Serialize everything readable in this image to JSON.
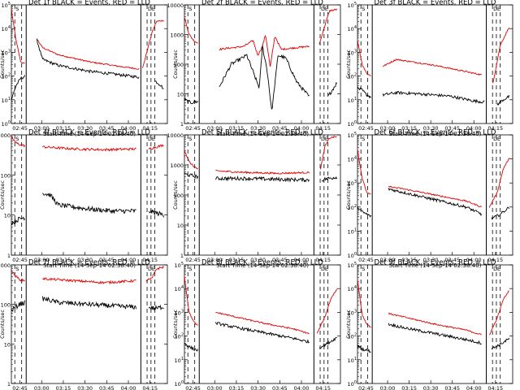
{
  "colors": {
    "events": "#000000",
    "lld": "#e00000",
    "axes": "#000000",
    "background": "#ffffff"
  },
  "common": {
    "xlabel": "Start Time (14-Sep-14 02:38:40)",
    "ylabel": "Counts/sec",
    "x_ticks": [
      "02:45",
      "03:00",
      "03:15",
      "03:30",
      "03:45",
      "04:00",
      "04:15"
    ],
    "marker_labels": [
      "S",
      "D",
      "E"
    ]
  },
  "chart_data": [
    {
      "title": "Det 1f BLACK = Events, RED = LLD",
      "type": "line",
      "ylim": [
        1,
        100000
      ],
      "yticks": [
        "10^0",
        "10^1",
        "10^2",
        "10^3",
        "10^4",
        "10^5"
      ],
      "events": [
        [
          0,
          1.0
        ],
        [
          0.03,
          1.6
        ],
        [
          0.06,
          1.9
        ],
        [
          0.09,
          2.0
        ],
        [
          0.095,
          null
        ],
        [
          0.16,
          3.6
        ],
        [
          0.2,
          2.7
        ],
        [
          0.3,
          2.45
        ],
        [
          0.5,
          2.2
        ],
        [
          0.7,
          2.05
        ],
        [
          0.82,
          1.95
        ],
        [
          0.83,
          null
        ],
        [
          0.92,
          1.8
        ],
        [
          0.96,
          1.6
        ],
        [
          0.98,
          1.4
        ]
      ],
      "lld": [
        [
          0,
          4.8
        ],
        [
          0.03,
          3.5
        ],
        [
          0.06,
          2.6
        ],
        [
          0.09,
          2.5
        ],
        [
          0.095,
          null
        ],
        [
          0.16,
          3.6
        ],
        [
          0.2,
          3.2
        ],
        [
          0.3,
          2.9
        ],
        [
          0.5,
          2.6
        ],
        [
          0.7,
          2.4
        ],
        [
          0.82,
          2.3
        ],
        [
          0.83,
          null
        ],
        [
          0.84,
          2.3
        ],
        [
          0.9,
          3.8
        ],
        [
          0.93,
          4.3
        ],
        [
          0.98,
          4.35
        ]
      ]
    },
    {
      "title": "Det 2f BLACK = Events, RED = LLD",
      "type": "line",
      "ylim": [
        1,
        10000
      ],
      "yticks": [
        "1",
        "10",
        "100",
        "1000",
        "10000"
      ],
      "events": [
        [
          0,
          0.8
        ],
        [
          0.04,
          0.7
        ],
        [
          0.09,
          0.75
        ],
        [
          0.095,
          null
        ],
        [
          0.22,
          1.2
        ],
        [
          0.3,
          2.0
        ],
        [
          0.4,
          2.3
        ],
        [
          0.45,
          1.6
        ],
        [
          0.48,
          1.2
        ],
        [
          0.5,
          2.6
        ],
        [
          0.53,
          1.8
        ],
        [
          0.56,
          0.4
        ],
        [
          0.6,
          2.3
        ],
        [
          0.65,
          2.2
        ],
        [
          0.72,
          1.4
        ],
        [
          0.8,
          0.9
        ],
        [
          0.83,
          null
        ],
        [
          0.92,
          0.9
        ],
        [
          0.98,
          1.4
        ]
      ],
      "lld": [
        [
          0,
          3.6
        ],
        [
          0.03,
          3.0
        ],
        [
          0.06,
          2.8
        ],
        [
          0.09,
          2.7
        ],
        [
          0.095,
          null
        ],
        [
          0.22,
          2.5
        ],
        [
          0.38,
          2.6
        ],
        [
          0.44,
          2.8
        ],
        [
          0.47,
          2.3
        ],
        [
          0.5,
          2.6
        ],
        [
          0.52,
          3.0
        ],
        [
          0.55,
          1.9
        ],
        [
          0.58,
          2.95
        ],
        [
          0.62,
          2.5
        ],
        [
          0.7,
          2.55
        ],
        [
          0.8,
          2.6
        ],
        [
          0.83,
          null
        ],
        [
          0.86,
          2.6
        ],
        [
          0.9,
          3.3
        ],
        [
          0.93,
          3.8
        ],
        [
          0.98,
          3.85
        ]
      ]
    },
    {
      "title": "Det 3f BLACK = Events, RED = LLD",
      "type": "line",
      "ylim": [
        1,
        100000
      ],
      "yticks": [
        "10^0",
        "10^1",
        "10^2",
        "10^3",
        "10^4",
        "10^5"
      ],
      "events": [
        [
          0,
          1.5
        ],
        [
          0.03,
          1.4
        ],
        [
          0.06,
          1.2
        ],
        [
          0.09,
          1.1
        ],
        [
          0.095,
          null
        ],
        [
          0.16,
          1.2
        ],
        [
          0.25,
          1.3
        ],
        [
          0.4,
          1.25
        ],
        [
          0.6,
          1.15
        ],
        [
          0.75,
          0.95
        ],
        [
          0.82,
          0.9
        ],
        [
          0.83,
          null
        ],
        [
          0.9,
          0.8
        ],
        [
          0.94,
          1.0
        ],
        [
          0.98,
          1.15
        ]
      ],
      "lld": [
        [
          0,
          3.5
        ],
        [
          0.03,
          2.5
        ],
        [
          0.06,
          2.1
        ],
        [
          0.09,
          2.0
        ],
        [
          0.095,
          null
        ],
        [
          0.16,
          2.4
        ],
        [
          0.25,
          2.7
        ],
        [
          0.35,
          2.6
        ],
        [
          0.5,
          2.45
        ],
        [
          0.65,
          2.25
        ],
        [
          0.8,
          2.05
        ],
        [
          0.83,
          null
        ],
        [
          0.87,
          1.6
        ],
        [
          0.92,
          3.3
        ],
        [
          0.98,
          4.1
        ]
      ]
    },
    {
      "title": "Det 4f BLACK = Events, RED = LLD",
      "type": "line",
      "ylim": [
        1,
        1000
      ],
      "yticks": [
        "1",
        "10",
        "100",
        "1000"
      ],
      "events": [
        [
          0,
          0.8
        ],
        [
          0.05,
          0.9
        ],
        [
          0.09,
          0.95
        ],
        [
          0.095,
          null
        ],
        [
          0.2,
          1.55
        ],
        [
          0.25,
          1.5
        ],
        [
          0.3,
          1.25
        ],
        [
          0.4,
          1.2
        ],
        [
          0.5,
          1.15
        ],
        [
          0.65,
          1.1
        ],
        [
          0.8,
          1.1
        ],
        [
          0.83,
          null
        ],
        [
          0.88,
          1.1
        ],
        [
          0.93,
          1.05
        ],
        [
          0.98,
          1.0
        ]
      ],
      "lld": [
        [
          0,
          2.95
        ],
        [
          0.03,
          2.8
        ],
        [
          0.06,
          2.75
        ],
        [
          0.09,
          2.73
        ],
        [
          0.095,
          null
        ],
        [
          0.2,
          2.7
        ],
        [
          0.4,
          2.65
        ],
        [
          0.6,
          2.63
        ],
        [
          0.8,
          2.65
        ],
        [
          0.83,
          null
        ],
        [
          0.88,
          2.65
        ],
        [
          0.93,
          2.7
        ],
        [
          0.98,
          2.75
        ]
      ]
    },
    {
      "title": "Det 5f BLACK = Events, RED = LLD",
      "type": "line",
      "ylim": [
        1,
        10000
      ],
      "yticks": [
        "1",
        "10",
        "100",
        "1000",
        "10000"
      ],
      "events": [
        [
          0,
          2.7
        ],
        [
          0.04,
          2.65
        ],
        [
          0.09,
          2.6
        ],
        [
          0.095,
          null
        ],
        [
          0.2,
          2.55
        ],
        [
          0.4,
          2.55
        ],
        [
          0.6,
          2.52
        ],
        [
          0.8,
          2.5
        ],
        [
          0.83,
          null
        ],
        [
          0.88,
          2.5
        ],
        [
          0.92,
          2.55
        ],
        [
          0.98,
          2.6
        ]
      ],
      "lld": [
        [
          0,
          3.5
        ],
        [
          0.03,
          3.1
        ],
        [
          0.06,
          2.95
        ],
        [
          0.09,
          2.85
        ],
        [
          0.095,
          null
        ],
        [
          0.2,
          2.8
        ],
        [
          0.4,
          2.75
        ],
        [
          0.6,
          2.72
        ],
        [
          0.8,
          2.75
        ],
        [
          0.83,
          null
        ],
        [
          0.87,
          2.8
        ],
        [
          0.9,
          3.6
        ],
        [
          0.93,
          3.9
        ],
        [
          0.98,
          3.95
        ]
      ]
    },
    {
      "title": "Det 6f BLACK = Events, RED = LLD",
      "type": "line",
      "ylim": [
        1,
        100000
      ],
      "yticks": [
        "10^0",
        "10^1",
        "10^2",
        "10^3",
        "10^4",
        "10^5"
      ],
      "events": [
        [
          0,
          2.0
        ],
        [
          0.03,
          1.8
        ],
        [
          0.06,
          1.7
        ],
        [
          0.09,
          1.6
        ],
        [
          0.095,
          null
        ],
        [
          0.2,
          2.75
        ],
        [
          0.3,
          2.6
        ],
        [
          0.5,
          2.3
        ],
        [
          0.7,
          2.0
        ],
        [
          0.8,
          1.7
        ],
        [
          0.83,
          null
        ],
        [
          0.86,
          1.5
        ],
        [
          0.92,
          1.7
        ],
        [
          0.98,
          2.0
        ]
      ],
      "lld": [
        [
          0,
          4.4
        ],
        [
          0.03,
          3.2
        ],
        [
          0.06,
          2.6
        ],
        [
          0.09,
          2.5
        ],
        [
          0.095,
          null
        ],
        [
          0.2,
          2.85
        ],
        [
          0.3,
          2.75
        ],
        [
          0.5,
          2.5
        ],
        [
          0.7,
          2.25
        ],
        [
          0.8,
          2.0
        ],
        [
          0.83,
          null
        ],
        [
          0.85,
          2.0
        ],
        [
          0.9,
          2.6
        ],
        [
          0.94,
          3.6
        ],
        [
          0.98,
          4.05
        ]
      ]
    },
    {
      "title": "Det 7f BLACK = Events, RED = LLD",
      "type": "line",
      "ylim": [
        1,
        1000
      ],
      "yticks": [
        "1",
        "10",
        "100",
        "1000"
      ],
      "events": [
        [
          0,
          1.85
        ],
        [
          0.05,
          2.0
        ],
        [
          0.09,
          2.05
        ],
        [
          0.095,
          null
        ],
        [
          0.2,
          2.15
        ],
        [
          0.3,
          2.05
        ],
        [
          0.5,
          2.0
        ],
        [
          0.7,
          1.95
        ],
        [
          0.8,
          1.93
        ],
        [
          0.83,
          null
        ],
        [
          0.88,
          1.92
        ],
        [
          0.93,
          1.9
        ],
        [
          0.98,
          1.95
        ]
      ],
      "lld": [
        [
          0,
          2.85
        ],
        [
          0.03,
          2.7
        ],
        [
          0.06,
          2.62
        ],
        [
          0.09,
          2.6
        ],
        [
          0.095,
          null
        ],
        [
          0.2,
          2.65
        ],
        [
          0.4,
          2.6
        ],
        [
          0.6,
          2.55
        ],
        [
          0.8,
          2.6
        ],
        [
          0.83,
          null
        ],
        [
          0.86,
          2.6
        ],
        [
          0.9,
          2.65
        ],
        [
          0.93,
          2.9
        ],
        [
          0.98,
          2.95
        ]
      ]
    },
    {
      "title": "Det 8f BLACK = Events, RED = LLD",
      "type": "line",
      "ylim": [
        1,
        100000
      ],
      "yticks": [
        "10^0",
        "10^1",
        "10^2",
        "10^3",
        "10^4",
        "10^5"
      ],
      "events": [
        [
          0,
          1.7
        ],
        [
          0.03,
          1.55
        ],
        [
          0.06,
          1.45
        ],
        [
          0.09,
          1.4
        ],
        [
          0.095,
          null
        ],
        [
          0.2,
          2.55
        ],
        [
          0.3,
          2.4
        ],
        [
          0.5,
          2.15
        ],
        [
          0.7,
          1.9
        ],
        [
          0.8,
          1.75
        ],
        [
          0.83,
          null
        ],
        [
          0.86,
          1.5
        ],
        [
          0.92,
          1.7
        ],
        [
          0.98,
          1.95
        ]
      ],
      "lld": [
        [
          0,
          4.5
        ],
        [
          0.03,
          3.0
        ],
        [
          0.06,
          2.6
        ],
        [
          0.09,
          2.4
        ],
        [
          0.095,
          null
        ],
        [
          0.2,
          3.0
        ],
        [
          0.3,
          2.85
        ],
        [
          0.5,
          2.55
        ],
        [
          0.7,
          2.3
        ],
        [
          0.8,
          2.1
        ],
        [
          0.83,
          null
        ],
        [
          0.85,
          2.1
        ],
        [
          0.9,
          2.8
        ],
        [
          0.94,
          3.6
        ],
        [
          0.98,
          4.0
        ]
      ]
    },
    {
      "title": "Det 9f BLACK = Events, RED = LLD",
      "type": "line",
      "ylim": [
        1,
        100000
      ],
      "yticks": [
        "10^0",
        "10^1",
        "10^2",
        "10^3",
        "10^4",
        "10^5"
      ],
      "events": [
        [
          0,
          1.6
        ],
        [
          0.03,
          1.45
        ],
        [
          0.06,
          1.4
        ],
        [
          0.09,
          1.35
        ],
        [
          0.095,
          null
        ],
        [
          0.2,
          2.5
        ],
        [
          0.3,
          2.35
        ],
        [
          0.5,
          2.1
        ],
        [
          0.7,
          1.85
        ],
        [
          0.8,
          1.7
        ],
        [
          0.83,
          null
        ],
        [
          0.86,
          1.45
        ],
        [
          0.92,
          1.65
        ],
        [
          0.98,
          1.9
        ]
      ],
      "lld": [
        [
          0,
          4.4
        ],
        [
          0.03,
          2.9
        ],
        [
          0.06,
          2.5
        ],
        [
          0.09,
          2.35
        ],
        [
          0.095,
          null
        ],
        [
          0.2,
          2.95
        ],
        [
          0.3,
          2.8
        ],
        [
          0.5,
          2.5
        ],
        [
          0.7,
          2.25
        ],
        [
          0.8,
          2.05
        ],
        [
          0.83,
          null
        ],
        [
          0.85,
          2.05
        ],
        [
          0.9,
          2.75
        ],
        [
          0.94,
          3.55
        ],
        [
          0.98,
          3.95
        ]
      ]
    }
  ]
}
